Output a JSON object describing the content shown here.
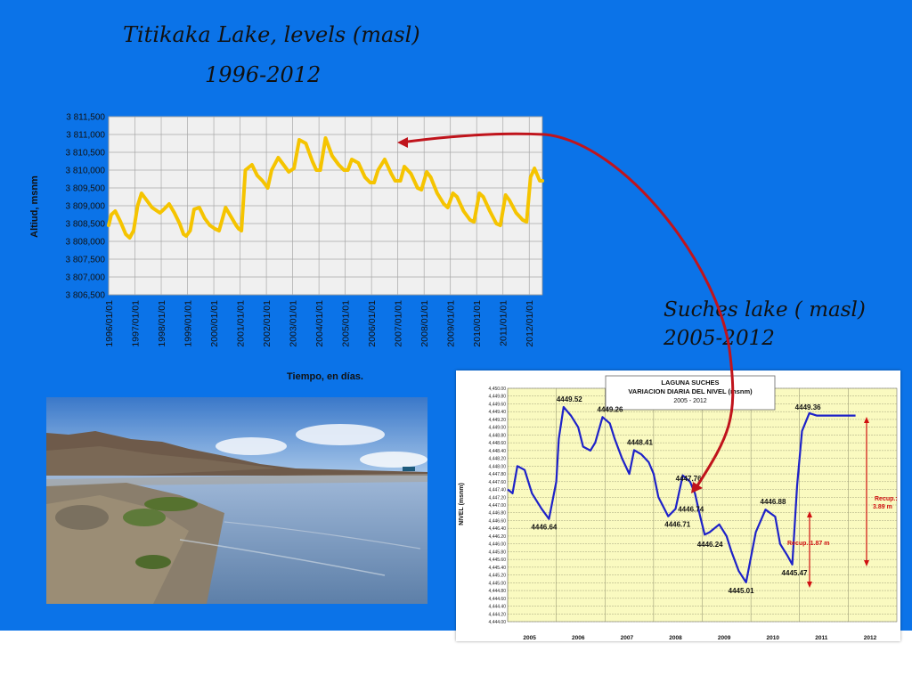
{
  "slide": {
    "title_line1": "Titikaka Lake, levels (masl)",
    "title_line2": "1996-2012",
    "suches_line1": "Suches lake ( masl)",
    "suches_line2": "2005-2012",
    "bg_color": "#0b73e8",
    "arrow_color": "#c0141c"
  },
  "chart_data": [
    {
      "type": "line",
      "title": "",
      "xlabel": "Tiempo, en días.",
      "ylabel": "Altiud, msnm",
      "x_ticks": [
        "1996/01/01",
        "1997/01/01",
        "1998/01/01",
        "1999/01/01",
        "2000/01/01",
        "2001/01/01",
        "2002/01/01",
        "2003/01/01",
        "2004/01/01",
        "2005/01/01",
        "2006/01/01",
        "2007/01/01",
        "2008/01/01",
        "2009/01/01",
        "2010/01/01",
        "2011/01/01",
        "2012/01/01"
      ],
      "y_ticks": [
        "3 806,500",
        "3 807,000",
        "3 807,500",
        "3 808,000",
        "3 808,500",
        "3 809,000",
        "3 809,500",
        "3 810,000",
        "3 810,500",
        "3 811,000",
        "3 811,500"
      ],
      "ylim": [
        3806500,
        3811500
      ],
      "xlim": [
        1996.0,
        2012.5
      ],
      "grid": true,
      "line_color": "#f5c400",
      "series": [
        {
          "x": [
            1996.0,
            1996.1,
            1996.25,
            1996.45,
            1996.65,
            1996.8,
            1996.95,
            1997.1,
            1997.25,
            1997.45,
            1997.65,
            1997.85,
            1997.95,
            1998.1,
            1998.3,
            1998.5,
            1998.7,
            1998.85,
            1998.95,
            1999.1,
            1999.25,
            1999.45,
            1999.65,
            1999.85,
            1999.95,
            2000.05,
            2000.2,
            2000.45,
            2000.65,
            2000.85,
            2000.95,
            2001.05,
            2001.2,
            2001.45,
            2001.65,
            2001.85,
            2002.05,
            2002.2,
            2002.45,
            2002.7,
            2002.85,
            2003.05,
            2003.25,
            2003.5,
            2003.75,
            2003.9,
            2004.05,
            2004.25,
            2004.5,
            2004.75,
            2004.95,
            2005.1,
            2005.25,
            2005.5,
            2005.75,
            2005.95,
            2006.1,
            2006.25,
            2006.5,
            2006.75,
            2006.9,
            2007.1,
            2007.25,
            2007.5,
            2007.75,
            2007.9,
            2008.1,
            2008.25,
            2008.5,
            2008.75,
            2008.9,
            2009.1,
            2009.25,
            2009.5,
            2009.75,
            2009.9,
            2010.1,
            2010.25,
            2010.5,
            2010.75,
            2010.9,
            2011.1,
            2011.25,
            2011.5,
            2011.75,
            2011.9,
            2012.05,
            2012.2,
            2012.4,
            2012.5
          ],
          "y": [
            3808450,
            3808750,
            3808850,
            3808550,
            3808200,
            3808100,
            3808300,
            3809000,
            3809350,
            3809150,
            3808950,
            3808850,
            3808800,
            3808900,
            3809050,
            3808800,
            3808500,
            3808200,
            3808150,
            3808300,
            3808900,
            3808950,
            3808650,
            3808450,
            3808400,
            3808350,
            3808300,
            3808950,
            3808700,
            3808450,
            3808350,
            3808300,
            3810000,
            3810150,
            3809850,
            3809700,
            3809500,
            3810000,
            3810350,
            3810100,
            3809950,
            3810050,
            3810850,
            3810750,
            3810250,
            3810000,
            3810000,
            3810900,
            3810400,
            3810150,
            3810000,
            3810000,
            3810300,
            3810200,
            3809800,
            3809650,
            3809650,
            3810000,
            3810300,
            3809900,
            3809700,
            3809700,
            3810100,
            3809900,
            3809500,
            3809450,
            3809950,
            3809800,
            3809350,
            3809050,
            3808950,
            3809350,
            3809250,
            3808850,
            3808600,
            3808550,
            3809350,
            3809250,
            3808850,
            3808500,
            3808450,
            3809300,
            3809150,
            3808800,
            3808600,
            3808550,
            3809800,
            3810050,
            3809700,
            3809700
          ]
        }
      ]
    },
    {
      "type": "line",
      "title": "LAGUNA SUCHES",
      "subtitle": "VARIACION DIARIA DEL NIVEL (msnm)",
      "subtitle2": "2005 - 2012",
      "ylabel": "NIVEL (msnm)",
      "ylim": [
        4444.0,
        4450.0
      ],
      "xlim": [
        2005.0,
        2013.0
      ],
      "x_year_labels": [
        "2005",
        "2006",
        "2007",
        "2008",
        "2009",
        "2010",
        "2011",
        "2012"
      ],
      "y_ticks": [
        "4,450.00",
        "4,449.80",
        "4,449.60",
        "4,449.40",
        "4,449.20",
        "4,449.00",
        "4,448.80",
        "4,448.60",
        "4,448.40",
        "4,448.20",
        "4,448.00",
        "4,447.80",
        "4,447.60",
        "4,447.40",
        "4,447.20",
        "4,447.00",
        "4,446.80",
        "4,446.60",
        "4,446.40",
        "4,446.20",
        "4,446.00",
        "4,445.80",
        "4,445.60",
        "4,445.40",
        "4,445.20",
        "4,445.00",
        "4,444.80",
        "4,444.60",
        "4,444.40",
        "4,444.20",
        "4,444.00"
      ],
      "line_color": "#1e22c8",
      "bg_color": "#fafac0",
      "series": [
        {
          "x": [
            2005.0,
            2005.1,
            2005.2,
            2005.35,
            2005.5,
            2005.7,
            2005.85,
            2006.0,
            2006.05,
            2006.15,
            2006.3,
            2006.45,
            2006.55,
            2006.7,
            2006.8,
            2006.95,
            2007.1,
            2007.2,
            2007.35,
            2007.5,
            2007.6,
            2007.75,
            2007.9,
            2008.0,
            2008.1,
            2008.3,
            2008.45,
            2008.6,
            2008.75,
            2008.85,
            2008.95,
            2009.05,
            2009.15,
            2009.35,
            2009.5,
            2009.6,
            2009.75,
            2009.9,
            2010.1,
            2010.3,
            2010.5,
            2010.6,
            2010.75,
            2010.85,
            2010.95,
            2011.05,
            2011.2,
            2011.35,
            2011.5,
            2011.65,
            2011.75,
            2011.85,
            2011.95,
            2012.05,
            2012.15
          ],
          "y": [
            4447.4,
            4447.3,
            4448.0,
            4447.9,
            4447.3,
            4446.9,
            4446.64,
            4447.6,
            4448.7,
            4449.52,
            4449.3,
            4449.0,
            4448.5,
            4448.4,
            4448.6,
            4449.26,
            4449.1,
            4448.7,
            4448.2,
            4447.8,
            4448.41,
            4448.3,
            4448.1,
            4447.8,
            4447.2,
            4446.71,
            4446.9,
            4447.76,
            4447.6,
            4447.3,
            4446.74,
            4446.24,
            4446.3,
            4446.5,
            4446.2,
            4445.8,
            4445.3,
            4445.01,
            4446.3,
            4446.88,
            4446.7,
            4446.0,
            4445.7,
            4445.47,
            4447.5,
            4448.9,
            4449.36,
            4449.3,
            4449.3,
            4449.3,
            4449.3,
            4449.3,
            4449.3,
            4449.3,
            4449.3
          ],
          "labels": [
            {
              "text": "4449.52",
              "x": 2006.15,
              "y": 4449.52
            },
            {
              "text": "4449.26",
              "x": 2006.95,
              "y": 4449.26
            },
            {
              "text": "4448.41",
              "x": 2007.6,
              "y": 4448.41
            },
            {
              "text": "4447.76",
              "x": 2008.6,
              "y": 4447.76
            },
            {
              "text": "4446.64",
              "x": 2005.85,
              "y": 4446.64
            },
            {
              "text": "4446.71",
              "x": 2008.3,
              "y": 4446.71
            },
            {
              "text": "4446.74",
              "x": 2009.05,
              "y": 4446.74
            },
            {
              "text": "4446.24",
              "x": 2009.15,
              "y": 4446.24
            },
            {
              "text": "4446.88",
              "x": 2010.3,
              "y": 4446.88
            },
            {
              "text": "4445.01",
              "x": 2009.9,
              "y": 4445.01
            },
            {
              "text": "4445.47",
              "x": 2010.85,
              "y": 4445.47
            },
            {
              "text": "4449.36",
              "x": 2011.2,
              "y": 4449.36
            }
          ]
        }
      ],
      "annotations": [
        {
          "text": "Recup.:1.87 m",
          "color": "#d01010"
        },
        {
          "text": "Recup.:",
          "color": "#d01010"
        },
        {
          "text": "3.89 m",
          "color": "#d01010"
        }
      ]
    }
  ]
}
